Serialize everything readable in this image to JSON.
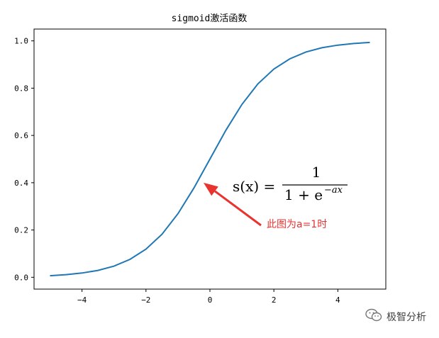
{
  "chart_data": {
    "type": "line",
    "title": "sigmoid激活函数",
    "xlabel": "",
    "ylabel": "",
    "xlim": [
      -5.5,
      5.5
    ],
    "ylim": [
      -0.05,
      1.05
    ],
    "xticks": [
      -4,
      -2,
      0,
      2,
      4
    ],
    "yticks": [
      0.0,
      0.2,
      0.4,
      0.6,
      0.8,
      1.0
    ],
    "xtick_labels": [
      "−4",
      "−2",
      "0",
      "2",
      "4"
    ],
    "ytick_labels": [
      "0.0",
      "0.2",
      "0.4",
      "0.6",
      "0.8",
      "1.0"
    ],
    "grid": false,
    "series": [
      {
        "color": "#1f77b4",
        "x": [
          -5,
          -4.5,
          -4,
          -3.5,
          -3,
          -2.5,
          -2,
          -1.5,
          -1,
          -0.5,
          0,
          0.5,
          1,
          1.5,
          2,
          2.5,
          3,
          3.5,
          4,
          4.5,
          5
        ],
        "y": [
          0.0067,
          0.011,
          0.018,
          0.029,
          0.047,
          0.076,
          0.119,
          0.182,
          0.269,
          0.378,
          0.5,
          0.622,
          0.731,
          0.818,
          0.881,
          0.924,
          0.953,
          0.971,
          0.982,
          0.989,
          0.9933
        ]
      }
    ],
    "annotation": {
      "text": "此图为a=1时",
      "color": "#e8332f",
      "arrow_target": {
        "x": -0.2,
        "y": 0.4
      }
    },
    "formula": {
      "lhs": "s(x) =",
      "numerator": "1",
      "denominator_base": "1 + e",
      "denominator_exponent": "−ax"
    }
  },
  "watermark": {
    "text": "极智分析",
    "icon": "wechat-icon"
  }
}
